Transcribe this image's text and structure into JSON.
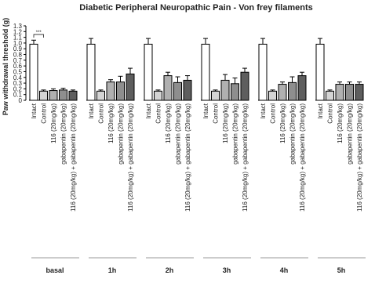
{
  "chart_data": {
    "type": "bar",
    "title": "Diabetic Peripheral Neuropathic Pain -  Von frey filaments",
    "y_label": "Paw withdrawal threshold (g)",
    "annotation": "***",
    "categories": [
      "basal",
      "1h",
      "2h",
      "3h",
      "4h",
      "5h"
    ],
    "series": [
      {
        "name": "Intact",
        "color": "#ffffff",
        "values": [
          0.98,
          0.98,
          0.98,
          0.98,
          0.98,
          0.98
        ],
        "errors": [
          0.07,
          0.1,
          0.1,
          0.1,
          0.1,
          0.1
        ]
      },
      {
        "name": "Control",
        "color": "#d4d4d4",
        "values": [
          0.16,
          0.16,
          0.16,
          0.16,
          0.16,
          0.16
        ],
        "errors": [
          0.02,
          0.02,
          0.02,
          0.02,
          0.02,
          0.02
        ]
      },
      {
        "name": "116 (20mg/kg)",
        "color": "#b0b0b0",
        "values": [
          0.17,
          0.32,
          0.43,
          0.35,
          0.28,
          0.28
        ],
        "errors": [
          0.03,
          0.04,
          0.06,
          0.1,
          0.04,
          0.04
        ]
      },
      {
        "name": "gabapentin (20mg/kg)",
        "color": "#8e8e8e",
        "values": [
          0.18,
          0.32,
          0.31,
          0.29,
          0.31,
          0.28
        ],
        "errors": [
          0.03,
          0.1,
          0.1,
          0.1,
          0.1,
          0.04
        ]
      },
      {
        "name": "116 (20mg/kg) + gabapentin (20mg/kg)",
        "color": "#5e5e5e",
        "values": [
          0.16,
          0.46,
          0.35,
          0.49,
          0.43,
          0.28
        ],
        "errors": [
          0.02,
          0.1,
          0.08,
          0.07,
          0.06,
          0.04
        ]
      }
    ],
    "ylim": [
      0,
      1.3
    ],
    "yticks": [
      0,
      0.1,
      0.2,
      0.3,
      0.4,
      0.5,
      0.6,
      0.7,
      0.8,
      0.9,
      {
        "value": 1,
        "label": "1.0"
      },
      1.1,
      1.2,
      1.3
    ]
  }
}
